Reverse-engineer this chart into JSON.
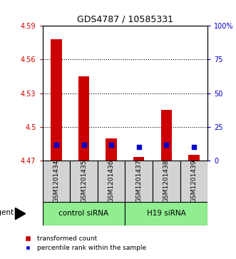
{
  "title": "GDS4787 / 10585331",
  "samples": [
    "GSM1201434",
    "GSM1201435",
    "GSM1201436",
    "GSM1201437",
    "GSM1201438",
    "GSM1201439"
  ],
  "group_labels": [
    "control siRNA",
    "H19 siRNA"
  ],
  "red_values": [
    4.578,
    4.545,
    4.49,
    4.473,
    4.515,
    4.475
  ],
  "blue_values": [
    4.484,
    4.484,
    4.484,
    4.482,
    4.484,
    4.482
  ],
  "ylim_left": [
    4.47,
    4.59
  ],
  "ylim_right": [
    0,
    100
  ],
  "yticks_left": [
    4.47,
    4.5,
    4.53,
    4.56,
    4.59
  ],
  "ytick_labels_left": [
    "4.47",
    "4.5",
    "4.53",
    "4.56",
    "4.59"
  ],
  "yticks_right": [
    0,
    25,
    50,
    75,
    100
  ],
  "ytick_labels_right": [
    "0",
    "25",
    "50",
    "75",
    "100%"
  ],
  "bar_bottom": 4.47,
  "bar_width": 0.4,
  "red_color": "#cc0000",
  "blue_color": "#0000cc",
  "legend_red_label": "transformed count",
  "legend_blue_label": "percentile rank within the sample",
  "agent_label": "agent",
  "left_tick_color": "#cc0000",
  "right_tick_color": "#0000cc",
  "plot_bg_color": "#ffffff",
  "sample_bg_color": "#d3d3d3",
  "green_bg": "#90ee90"
}
